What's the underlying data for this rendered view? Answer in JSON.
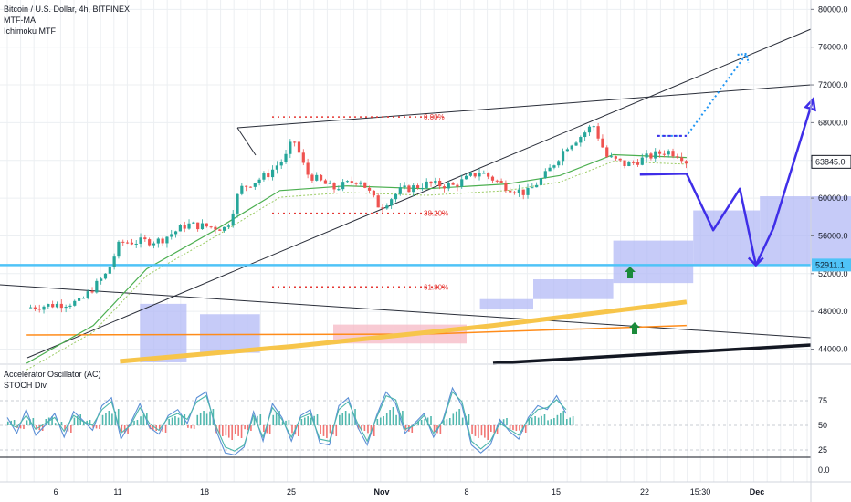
{
  "header": {
    "symbol_line": "Bitcoin / U.S. Dollar, 4h, BITFINEX",
    "indicators": [
      "MTF-MA",
      "Ichimoku MTF"
    ]
  },
  "subpane": {
    "indicators": [
      "Accelerator Oscillator (AC)",
      "STOCH Div"
    ]
  },
  "colors": {
    "bull": "#26a69a",
    "bear": "#ef5350",
    "cloud": "#b3b9f5",
    "cloud_pink": "#f5b8c4",
    "ma_green": "#4caf50",
    "ma_orange": "#ff8c1a",
    "ma_yellow": "#f7c54a",
    "support": "#4fc3f7",
    "forecast": "#3f2ee8",
    "forecast_dotted": "#2196f3",
    "fib": "#e53935",
    "stoch_blue": "#5b8fd6",
    "stoch_teal": "#4db6ac"
  },
  "chart_data": [
    {
      "type": "candlestick",
      "title": "Bitcoin / U.S. Dollar, 4h, BITFINEX",
      "ylim": [
        42500,
        81000
      ],
      "yticks": [
        "80000.0",
        "76000.0",
        "72000.0",
        "68000.0",
        "64000.0",
        "60000.0",
        "56000.0",
        "52000.0",
        "48000.0",
        "44000.0"
      ],
      "xticks": [
        "6",
        "11",
        "18",
        "25",
        "Nov",
        "8",
        "15",
        "22",
        "15:30",
        "Dec"
      ],
      "price_labels": {
        "last": {
          "value": 63845,
          "text": "63845.0"
        },
        "support": {
          "value": 52911.1,
          "text": "52911.1"
        }
      },
      "fib_levels": [
        {
          "label": "0.00%",
          "value": 68600
        },
        {
          "label": "38.20%",
          "value": 58400
        },
        {
          "label": "61.80%",
          "value": 50600
        }
      ],
      "price_path": [
        {
          "day": 0,
          "price": 48400
        },
        {
          "day": 4,
          "price": 49000
        },
        {
          "day": 6,
          "price": 52000
        },
        {
          "day": 7,
          "price": 55300
        },
        {
          "day": 10,
          "price": 55500
        },
        {
          "day": 12,
          "price": 57200
        },
        {
          "day": 15,
          "price": 56800
        },
        {
          "day": 16,
          "price": 61000
        },
        {
          "day": 18,
          "price": 62400
        },
        {
          "day": 19.5,
          "price": 64500
        },
        {
          "day": 20,
          "price": 66400
        },
        {
          "day": 21,
          "price": 62600
        },
        {
          "day": 23,
          "price": 61000
        },
        {
          "day": 25,
          "price": 62000
        },
        {
          "day": 26.5,
          "price": 59000
        },
        {
          "day": 28,
          "price": 60800
        },
        {
          "day": 30,
          "price": 61500
        },
        {
          "day": 32,
          "price": 61300
        },
        {
          "day": 34,
          "price": 62800
        },
        {
          "day": 36,
          "price": 61200
        },
        {
          "day": 37.5,
          "price": 60500
        },
        {
          "day": 39,
          "price": 62600
        },
        {
          "day": 40.5,
          "price": 65500
        },
        {
          "day": 41.5,
          "price": 66500
        },
        {
          "day": 42.5,
          "price": 67800
        },
        {
          "day": 43.5,
          "price": 64400
        },
        {
          "day": 45,
          "price": 63500
        },
        {
          "day": 46.5,
          "price": 64300
        },
        {
          "day": 48,
          "price": 65000
        },
        {
          "day": 49,
          "price": 64600
        },
        {
          "day": 49.5,
          "price": 63845
        }
      ],
      "ma_fast": [
        {
          "day": 0,
          "price": 42500
        },
        {
          "day": 5,
          "price": 46500
        },
        {
          "day": 9,
          "price": 52500
        },
        {
          "day": 14,
          "price": 56500
        },
        {
          "day": 19,
          "price": 60800
        },
        {
          "day": 24,
          "price": 61300
        },
        {
          "day": 30,
          "price": 61000
        },
        {
          "day": 36,
          "price": 61500
        },
        {
          "day": 40,
          "price": 62400
        },
        {
          "day": 44,
          "price": 64600
        },
        {
          "day": 49.5,
          "price": 64300
        }
      ],
      "ma_orange": [
        {
          "day": 0,
          "price": 45500
        },
        {
          "day": 30,
          "price": 45600
        },
        {
          "day": 49.5,
          "price": 46500
        }
      ],
      "ma_yellow": [
        {
          "day": 7,
          "price": 42700
        },
        {
          "day": 20,
          "price": 44300
        },
        {
          "day": 35,
          "price": 46500
        },
        {
          "day": 49.5,
          "price": 49000
        }
      ],
      "cloud_segments": [
        {
          "start": 8.5,
          "end": 12,
          "top": 48800,
          "bottom": 42600,
          "color": "cloud"
        },
        {
          "start": 13,
          "end": 17.5,
          "top": 47700,
          "bottom": 43600,
          "color": "cloud"
        },
        {
          "start": 23,
          "end": 33,
          "top": 46600,
          "bottom": 44600,
          "color": "cloud_pink"
        },
        {
          "start": 34,
          "end": 38,
          "top": 49300,
          "bottom": 48200,
          "color": "cloud"
        },
        {
          "start": 38,
          "end": 44,
          "top": 51400,
          "bottom": 49300,
          "color": "cloud"
        },
        {
          "start": 44,
          "end": 50,
          "top": 55500,
          "bottom": 51000,
          "color": "cloud"
        },
        {
          "start": 50,
          "end": 55,
          "top": 58700,
          "bottom": 52911.1,
          "color": "cloud"
        },
        {
          "start": 55,
          "end": 62,
          "top": 60200,
          "bottom": 52911.1,
          "color": "cloud"
        },
        {
          "start": 62,
          "end": 71,
          "top": 62000,
          "bottom": 52911.1,
          "color": "cloud"
        }
      ],
      "forecast_path": [
        {
          "day": 46,
          "price": 62500
        },
        {
          "day": 49.5,
          "price": 62600
        },
        {
          "day": 51.5,
          "price": 56600
        },
        {
          "day": 53.5,
          "price": 61000
        },
        {
          "day": 54.7,
          "price": 52900
        },
        {
          "day": 56,
          "price": 56800
        },
        {
          "day": 59,
          "price": 70500
        }
      ],
      "forecast_dotted_path": [
        {
          "day": 47.3,
          "price": 66600
        },
        {
          "day": 49.5,
          "price": 66600
        },
        {
          "day": 54,
          "price": 75300
        }
      ]
    },
    {
      "type": "line",
      "title": "Accelerator Oscillator (AC)",
      "ylim": [
        0,
        100
      ],
      "yticks": [
        "75",
        "50",
        "25",
        "0.0"
      ],
      "series": [
        {
          "name": "STOCH Div",
          "values": [
            58,
            42,
            66,
            40,
            50,
            62,
            38,
            64,
            55,
            45,
            70,
            78,
            36,
            52,
            72,
            48,
            41,
            60,
            66,
            52,
            78,
            84,
            46,
            22,
            20,
            28,
            64,
            34,
            72,
            58,
            34,
            60,
            66,
            32,
            30,
            70,
            78,
            48,
            30,
            60,
            84,
            72,
            42,
            52,
            62,
            38,
            56,
            88,
            70,
            30,
            22,
            30,
            56,
            44,
            36,
            58,
            70,
            66,
            80,
            62
          ]
        },
        {
          "name": "",
          "values": [
            52,
            48,
            60,
            46,
            52,
            58,
            44,
            60,
            54,
            50,
            66,
            74,
            42,
            50,
            68,
            52,
            45,
            58,
            62,
            56,
            74,
            80,
            50,
            28,
            24,
            30,
            60,
            38,
            68,
            56,
            38,
            58,
            62,
            36,
            34,
            66,
            74,
            52,
            34,
            58,
            80,
            76,
            46,
            50,
            60,
            42,
            54,
            84,
            74,
            34,
            26,
            34,
            52,
            46,
            40,
            56,
            66,
            68,
            76,
            66
          ]
        }
      ],
      "histogram": [
        3,
        -2,
        4,
        -3,
        5,
        2,
        -4,
        6,
        3,
        -2,
        8,
        9,
        -5,
        3,
        7,
        -3,
        -4,
        5,
        6,
        -2,
        8,
        9,
        -6,
        -8,
        -7,
        -3,
        6,
        -5,
        8,
        3,
        -6,
        5,
        6,
        -7,
        -6,
        8,
        9,
        -3,
        -6,
        5,
        10,
        8,
        -4,
        3,
        5,
        -5,
        4,
        9,
        6,
        -7,
        -8,
        -5,
        4,
        -3,
        -4,
        5,
        6,
        4,
        8,
        5
      ]
    }
  ]
}
